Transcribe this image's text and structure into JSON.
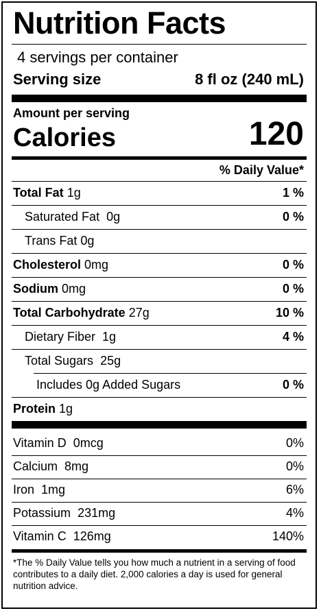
{
  "title": "Nutrition Facts",
  "servings_per_container": "4 servings per container",
  "serving_size_label": "Serving size",
  "serving_size_value": "8 fl oz (240 mL)",
  "amount_per_serving": "Amount per serving",
  "calories_label": "Calories",
  "calories_value": "120",
  "daily_value_header": "% Daily Value*",
  "nutrients": [
    {
      "name": "Total Fat",
      "amount": "1g",
      "dv": "1 %"
    },
    {
      "name": "Saturated Fat",
      "amount": "0g",
      "dv": "0 %"
    },
    {
      "name": "Trans Fat",
      "amount": "0g",
      "dv": ""
    },
    {
      "name": "Cholesterol",
      "amount": "0mg",
      "dv": "0 %"
    },
    {
      "name": "Sodium",
      "amount": "0mg",
      "dv": "0 %"
    },
    {
      "name": "Total Carbohydrate",
      "amount": "27g",
      "dv": "10 %"
    },
    {
      "name": "Dietary Fiber",
      "amount": "1g",
      "dv": "4 %"
    },
    {
      "name": "Total Sugars",
      "amount": "25g",
      "dv": ""
    },
    {
      "name": "Includes 0g Added Sugars",
      "amount": "",
      "dv": "0 %"
    },
    {
      "name": "Protein",
      "amount": "1g",
      "dv": ""
    }
  ],
  "vitamins": [
    {
      "name": "Vitamin D",
      "amount": "0mcg",
      "dv": "0%"
    },
    {
      "name": "Calcium",
      "amount": "8mg",
      "dv": "0%"
    },
    {
      "name": "Iron",
      "amount": "1mg",
      "dv": "6%"
    },
    {
      "name": "Potassium",
      "amount": "231mg",
      "dv": "4%"
    },
    {
      "name": "Vitamin C",
      "amount": "126mg",
      "dv": "140%"
    }
  ],
  "footnote": "*The % Daily Value tells you how much a nutrient in a serving of food contributes to a daily diet. 2,000 calories a day is used for general nutrition advice."
}
